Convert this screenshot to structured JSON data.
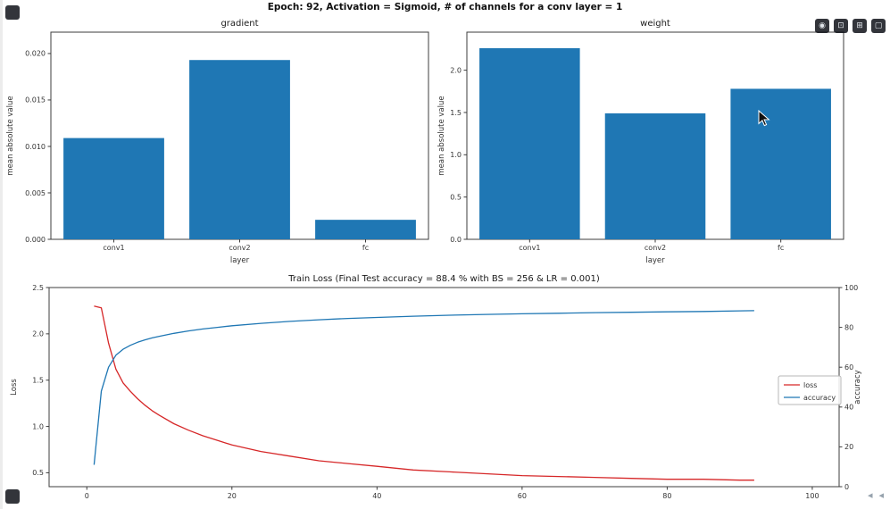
{
  "figure": {
    "suptitle": "Epoch: 92, Activation = Sigmoid, # of channels for a conv layer = 1"
  },
  "overlay": {
    "icons": [
      {
        "name": "record-icon",
        "glyph": "◉"
      },
      {
        "name": "pip-icon",
        "glyph": "⊡"
      },
      {
        "name": "expand-icon",
        "glyph": "⊞"
      },
      {
        "name": "fullscreen-icon",
        "glyph": "▢"
      }
    ],
    "arrows": [
      "◂",
      "◂"
    ]
  },
  "chart_data": [
    {
      "type": "bar",
      "title": "gradient",
      "categories": [
        "conv1",
        "conv2",
        "fc"
      ],
      "values": [
        0.0109,
        0.0193,
        0.0021
      ],
      "xlabel": "layer",
      "ylabel": "mean absolute value",
      "ylim": [
        0,
        0.0223
      ],
      "yticks": [
        0,
        0.005,
        0.01,
        0.015,
        0.02
      ],
      "ytick_decimals": 3,
      "bar_color": "#1f77b4"
    },
    {
      "type": "bar",
      "title": "weight",
      "categories": [
        "conv1",
        "conv2",
        "fc"
      ],
      "values": [
        2.26,
        1.49,
        1.78
      ],
      "xlabel": "layer",
      "ylabel": "mean absolute value",
      "ylim": [
        0,
        2.45
      ],
      "yticks": [
        0,
        0.5,
        1.0,
        1.5,
        2.0
      ],
      "ytick_decimals": 1,
      "bar_color": "#1f77b4"
    },
    {
      "type": "line",
      "title": "Train Loss (Final Test accuracy = 88.4 % with BS = 256 & LR = 0.001)",
      "ylabel_left": "Loss",
      "ylabel_right": "accuracy",
      "xlim": [
        -5.2,
        103.7
      ],
      "xticks": [
        0,
        20,
        40,
        60,
        80,
        100
      ],
      "ylim_left": [
        0.35,
        2.5
      ],
      "yticks_left": [
        0.5,
        1.0,
        1.5,
        2.0,
        2.5
      ],
      "ylim_right": [
        0,
        100
      ],
      "yticks_right": [
        0,
        20,
        40,
        60,
        80,
        100
      ],
      "legend_position": "center right",
      "grid": false,
      "x": [
        1,
        2,
        3,
        4,
        5,
        6,
        7,
        8,
        9,
        10,
        12,
        14,
        16,
        18,
        20,
        24,
        28,
        32,
        36,
        40,
        45,
        50,
        55,
        60,
        65,
        70,
        75,
        80,
        85,
        90,
        92
      ],
      "series": [
        {
          "name": "loss",
          "axis": "left",
          "color": "#d62728",
          "values": [
            2.3,
            2.28,
            1.9,
            1.62,
            1.47,
            1.38,
            1.3,
            1.23,
            1.17,
            1.12,
            1.03,
            0.96,
            0.9,
            0.85,
            0.8,
            0.73,
            0.68,
            0.63,
            0.6,
            0.57,
            0.53,
            0.51,
            0.49,
            0.47,
            0.46,
            0.45,
            0.44,
            0.43,
            0.43,
            0.42,
            0.42
          ]
        },
        {
          "name": "accuracy",
          "axis": "right",
          "color": "#1f77b4",
          "values": [
            11,
            48,
            60,
            66,
            69,
            71,
            72.5,
            73.7,
            74.7,
            75.5,
            77,
            78.2,
            79.2,
            80,
            80.8,
            82,
            83,
            83.8,
            84.5,
            85,
            85.6,
            86.1,
            86.5,
            86.8,
            87.1,
            87.4,
            87.6,
            87.8,
            88.0,
            88.3,
            88.4
          ]
        }
      ]
    }
  ]
}
